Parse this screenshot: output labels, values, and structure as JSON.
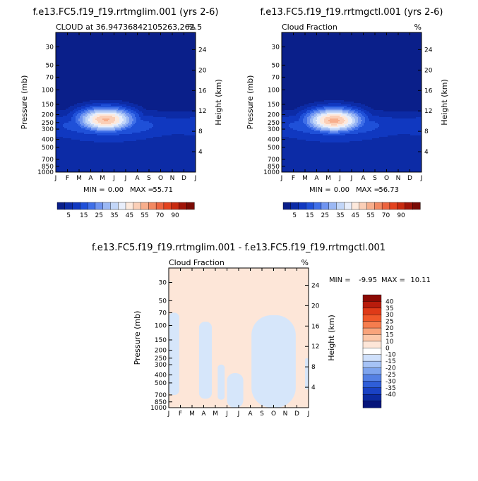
{
  "chart_data": [
    {
      "type": "heatmap",
      "title": "f.e13.FC5.f19_f19.rrtmglim.001 (yrs 2-6)",
      "subtitle_left": "CLOUD at 36.94736842105263,262.5",
      "subtitle_right": "%",
      "ylabel_left": "Pressure (mb)",
      "ylabel_right": "Height (km)",
      "x_ticks": [
        "J",
        "F",
        "M",
        "A",
        "M",
        "J",
        "J",
        "A",
        "S",
        "O",
        "N",
        "D",
        "J"
      ],
      "pressure_ticks": [
        30,
        50,
        70,
        100,
        150,
        200,
        250,
        300,
        400,
        500,
        700,
        850,
        1000
      ],
      "height_ticks": [
        4,
        8,
        12,
        16,
        20,
        24
      ],
      "min_label": "MIN =",
      "min_value": "0.00",
      "max_label": "MAX =",
      "max_value": "55.71",
      "max": 55.71,
      "peak_month": 4.3,
      "peak_pressure": 230
    },
    {
      "type": "heatmap",
      "title": "f.e13.FC5.f19_f19.rrtmgctl.001 (yrs 2-6)",
      "subtitle_left": "Cloud Fraction",
      "subtitle_right": "%",
      "ylabel_left": "Pressure (mb)",
      "ylabel_right": "Height (km)",
      "x_ticks": [
        "J",
        "F",
        "M",
        "A",
        "M",
        "J",
        "J",
        "A",
        "S",
        "O",
        "N",
        "D",
        "J"
      ],
      "pressure_ticks": [
        30,
        50,
        70,
        100,
        150,
        200,
        250,
        300,
        400,
        500,
        700,
        850,
        1000
      ],
      "height_ticks": [
        4,
        8,
        12,
        16,
        20,
        24
      ],
      "min_label": "MIN =",
      "min_value": "0.00",
      "max_label": "MAX =",
      "max_value": "56.73",
      "max": 56.73,
      "peak_month": 4.5,
      "peak_pressure": 235
    },
    {
      "type": "heatmap",
      "title": "f.e13.FC5.f19_f19.rrtmglim.001 - f.e13.FC5.f19_f19.rrtmgctl.001",
      "subtitle_left": "Cloud Fraction",
      "subtitle_right": "%",
      "ylabel_left": "Pressure (mb)",
      "ylabel_right": "Height (km)",
      "x_ticks": [
        "J",
        "F",
        "M",
        "A",
        "M",
        "J",
        "J",
        "A",
        "S",
        "O",
        "N",
        "D",
        "J"
      ],
      "pressure_ticks": [
        30,
        50,
        70,
        100,
        150,
        200,
        250,
        300,
        400,
        500,
        700,
        850,
        1000
      ],
      "height_ticks": [
        4,
        8,
        12,
        16,
        20,
        24
      ],
      "min_label": "MIN =",
      "min_value": "-9.95",
      "max_label": "MAX =",
      "max_value": "10.11",
      "difference_regions": [
        {
          "sign": "negative",
          "months": [
            0.0,
            0.9
          ],
          "pressure": [
            70,
            700
          ]
        },
        {
          "sign": "negative",
          "months": [
            2.6,
            3.7
          ],
          "pressure": [
            90,
            780
          ]
        },
        {
          "sign": "negative",
          "months": [
            4.2,
            4.8
          ],
          "pressure": [
            300,
            800
          ]
        },
        {
          "sign": "negative",
          "months": [
            5.0,
            6.4
          ],
          "pressure": [
            380,
            1000
          ]
        },
        {
          "sign": "negative",
          "months": [
            7.1,
            10.9
          ],
          "pressure": [
            75,
            1000
          ]
        },
        {
          "sign": "negative",
          "months": [
            11.7,
            12.0
          ],
          "pressure": [
            250,
            600
          ]
        }
      ]
    }
  ],
  "legend_full": {
    "labels": [
      "5",
      "15",
      "25",
      "35",
      "45",
      "55",
      "70",
      "90"
    ],
    "colors": [
      "#0a1f8a",
      "#0c2ba6",
      "#1038c0",
      "#1f50d8",
      "#3f6fe8",
      "#6f94f0",
      "#9bb8f4",
      "#c2d6f8",
      "#e8eefb",
      "#fde9dc",
      "#fbcfb7",
      "#f7ae8c",
      "#f28962",
      "#ec643f",
      "#e3431f",
      "#c82a0f",
      "#a01408",
      "#7a0a04"
    ]
  },
  "legend_diff": {
    "labels": [
      "40",
      "35",
      "30",
      "25",
      "20",
      "15",
      "10",
      "0",
      "-10",
      "-15",
      "-20",
      "-25",
      "-30",
      "-35",
      "-40"
    ],
    "colors": [
      "#8b0a04",
      "#b81c0c",
      "#df3a18",
      "#f0582a",
      "#f57d4e",
      "#f9a47c",
      "#fcc8aa",
      "#fde6d8",
      "#ffffff",
      "#cfe0fb",
      "#a6c3f6",
      "#7ea4ee",
      "#5480e4",
      "#2f5ed8",
      "#1a42c4",
      "#0c2aa0",
      "#06157a"
    ]
  }
}
